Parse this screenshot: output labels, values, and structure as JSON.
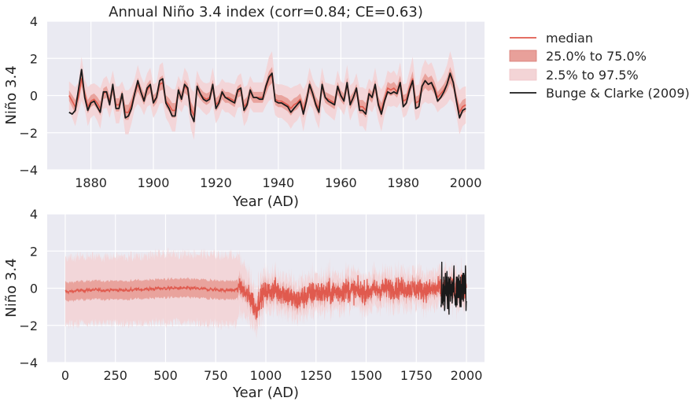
{
  "colors": {
    "median": "#e05a4e",
    "iqr": "#e8a09a",
    "ci95": "#f3d4d6",
    "observed": "#1a1a1a",
    "panel_bg": "#eaeaf2",
    "grid": "#ffffff"
  },
  "legend": {
    "placement": "outside-right",
    "entries": [
      "median",
      "25.0% to 75.0%",
      "2.5% to 97.5%",
      "Bunge & Clarke (2009)"
    ]
  },
  "chart_data": [
    {
      "type": "line",
      "title": "Annual Niño 3.4 index (corr=0.84; CE=0.63)",
      "xlabel": "Year (AD)",
      "ylabel": "Niño 3.4",
      "xlim": [
        1866,
        2006
      ],
      "ylim": [
        -4,
        4
      ],
      "xticks": [
        1880,
        1900,
        1920,
        1940,
        1960,
        1980,
        2000
      ],
      "yticks": [
        -4,
        -2,
        0,
        2,
        4
      ],
      "grid": true,
      "x_start": 1873,
      "x_end": 2000,
      "observed": [
        -0.9,
        -1.0,
        -0.8,
        0.3,
        1.4,
        -0.1,
        -0.8,
        -0.4,
        -0.3,
        -0.6,
        -0.9,
        0.2,
        0.2,
        -0.5,
        0.6,
        -0.7,
        -0.7,
        0.1,
        -1.2,
        -1.1,
        -0.7,
        0.1,
        0.8,
        0.2,
        -0.3,
        0.4,
        0.6,
        -0.4,
        -0.1,
        0.8,
        0.9,
        -0.4,
        -0.7,
        -1.1,
        -1.1,
        0.3,
        -0.2,
        0.6,
        0.4,
        -1.0,
        -1.4,
        0.5,
        0.1,
        -0.2,
        -0.3,
        -0.2,
        0.6,
        -0.7,
        -0.4,
        0.2,
        -0.1,
        -0.2,
        -0.3,
        -0.4,
        0.3,
        0.4,
        -0.8,
        -0.5,
        0.3,
        -0.1,
        -0.1,
        -0.2,
        -0.2,
        0.5,
        1.0,
        1.2,
        -0.3,
        -0.4,
        -0.4,
        -0.5,
        -0.6,
        -0.9,
        -0.7,
        -0.5,
        -0.3,
        -1.0,
        -0.3,
        0.6,
        0.1,
        -0.5,
        -0.9,
        0.6,
        -0.1,
        -0.3,
        -0.4,
        -0.5,
        0.5,
        0.0,
        -0.3,
        0.7,
        -0.5,
        -0.1,
        0.4,
        -0.8,
        -0.8,
        -1.0,
        0.1,
        -0.1,
        0.6,
        -0.5,
        -1.0,
        -0.3,
        0.2,
        0.1,
        0.2,
        0.1,
        0.7,
        -0.6,
        -0.4,
        0.3,
        0.8,
        -0.7,
        -0.6,
        0.5,
        0.8,
        0.6,
        0.7,
        0.3,
        -0.3,
        -0.1,
        0.2,
        0.6,
        1.2,
        0.7,
        -0.3,
        -1.2,
        -0.8,
        -0.7
      ],
      "median": [
        0.0,
        -0.3,
        -0.6,
        -0.1,
        0.9,
        0.1,
        -0.6,
        -0.3,
        -0.2,
        -0.4,
        -0.7,
        0.1,
        0.2,
        -0.3,
        0.4,
        -0.5,
        -0.5,
        0.0,
        -0.9,
        -0.9,
        -0.5,
        0.1,
        0.6,
        0.2,
        -0.2,
        0.3,
        0.5,
        -0.3,
        -0.1,
        0.6,
        0.7,
        -0.3,
        -0.5,
        -0.8,
        -0.8,
        0.2,
        -0.1,
        0.5,
        0.3,
        -0.7,
        -1.1,
        0.4,
        0.1,
        -0.1,
        -0.2,
        -0.1,
        0.5,
        -0.5,
        -0.3,
        0.1,
        -0.1,
        -0.1,
        -0.2,
        -0.3,
        0.2,
        0.3,
        -0.6,
        -0.4,
        0.2,
        -0.1,
        -0.1,
        -0.1,
        -0.1,
        0.4,
        0.9,
        1.1,
        -0.2,
        -0.3,
        -0.3,
        -0.4,
        -0.5,
        -0.7,
        -0.5,
        -0.4,
        -0.2,
        -0.8,
        -0.2,
        0.5,
        0.1,
        -0.4,
        -0.7,
        0.5,
        -0.1,
        -0.2,
        -0.3,
        -0.4,
        0.4,
        0.0,
        -0.2,
        0.6,
        -0.4,
        -0.1,
        0.3,
        -0.6,
        -0.6,
        -0.8,
        0.1,
        -0.1,
        0.5,
        -0.4,
        -0.8,
        -0.2,
        0.4,
        0.3,
        0.4,
        0.2,
        0.7,
        -0.3,
        -0.2,
        0.4,
        0.9,
        -0.4,
        -0.3,
        0.5,
        0.8,
        0.6,
        0.7,
        0.4,
        -0.1,
        0.1,
        0.3,
        0.6,
        1.1,
        0.7,
        -0.2,
        -0.9,
        -0.6,
        -0.5
      ],
      "iqr_halfwidth": 0.35,
      "ci95_halfwidth": 0.95
    },
    {
      "type": "line",
      "title": "",
      "xlabel": "Year (AD)",
      "ylabel": "Niño 3.4",
      "xlim": [
        -90,
        2090
      ],
      "ylim": [
        -4,
        4
      ],
      "xticks": [
        0,
        250,
        500,
        750,
        1000,
        1250,
        1500,
        1750,
        2000
      ],
      "yticks": [
        -4,
        -2,
        0,
        2,
        4
      ],
      "grid": true,
      "median_range": [
        0,
        2000
      ],
      "median_envelope": {
        "years": [
          0,
          100,
          200,
          300,
          400,
          500,
          600,
          700,
          800,
          850,
          870,
          900,
          930,
          950,
          970,
          1000,
          1050,
          1100,
          1150,
          1200,
          1250,
          1300,
          1400,
          1500,
          1600,
          1700,
          1800,
          1900,
          2000
        ],
        "center": [
          -0.2,
          -0.1,
          -0.1,
          -0.1,
          -0.05,
          0.0,
          0.0,
          -0.05,
          -0.1,
          -0.1,
          0.1,
          -0.3,
          -0.6,
          -1.2,
          -0.5,
          -0.2,
          -0.1,
          -0.3,
          -0.7,
          -0.4,
          -0.2,
          -0.3,
          -0.1,
          -0.2,
          0.0,
          0.0,
          -0.1,
          0.0,
          -0.1
        ],
        "amplitude": [
          0.25,
          0.25,
          0.25,
          0.25,
          0.25,
          0.25,
          0.25,
          0.25,
          0.3,
          0.4,
          0.6,
          0.8,
          1.0,
          1.0,
          0.9,
          0.9,
          1.0,
          1.0,
          1.0,
          1.0,
          1.0,
          1.0,
          1.0,
          0.9,
          0.9,
          0.9,
          0.9,
          0.9,
          0.9
        ]
      },
      "iqr_envelope": {
        "years": [
          0,
          300,
          600,
          850,
          870,
          950,
          1000,
          1500,
          2000
        ],
        "halfwidth": [
          0.5,
          0.5,
          0.5,
          0.5,
          0.45,
          0.4,
          0.4,
          0.35,
          0.35
        ]
      },
      "ci95_envelope": {
        "years": [
          0,
          300,
          600,
          850,
          870,
          950,
          1000,
          1500,
          2000
        ],
        "halfwidth": [
          1.8,
          1.8,
          1.85,
          1.9,
          1.5,
          1.1,
          1.0,
          0.95,
          0.95
        ]
      },
      "observed_range": [
        1873,
        2000
      ]
    }
  ]
}
